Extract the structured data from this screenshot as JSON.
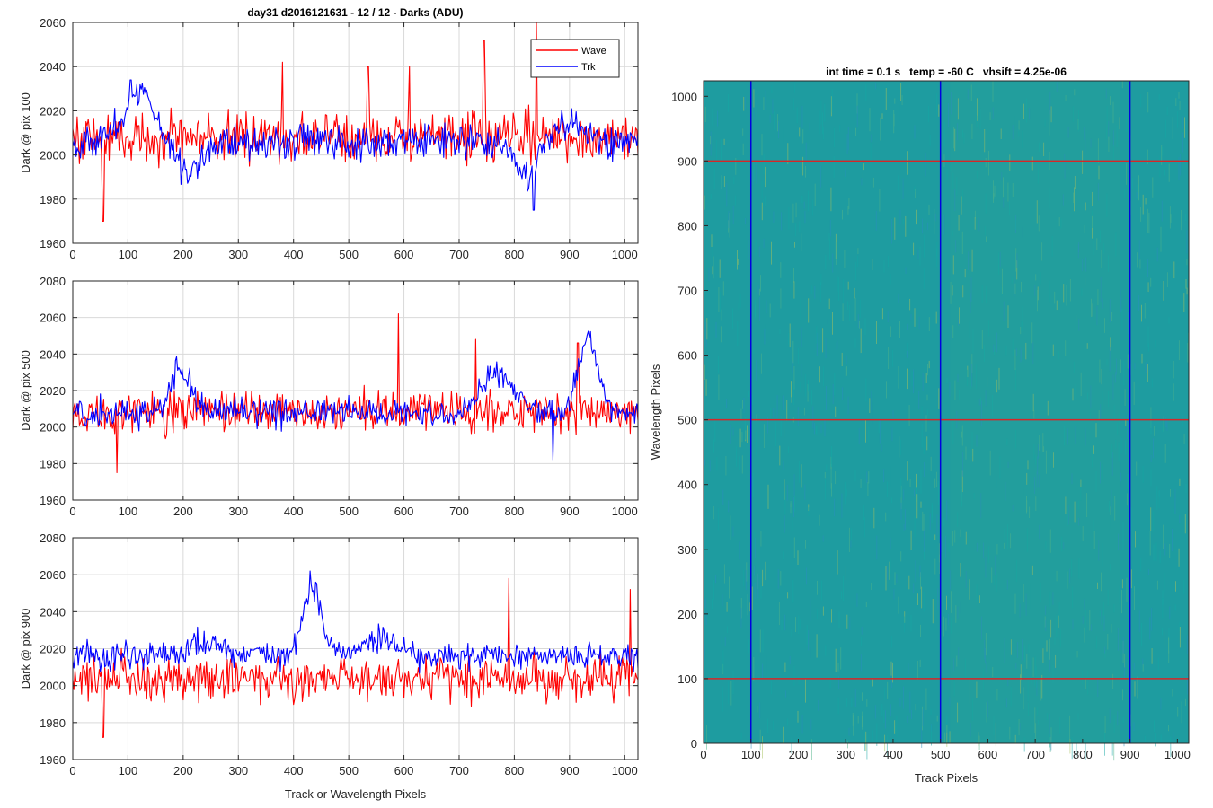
{
  "colors": {
    "wave": "#ff0000",
    "trk": "#0000ff",
    "grid": "#d9d9d9",
    "axes": "#262626",
    "image_base": "#1e9ca0",
    "marker_h": "#d62728",
    "marker_v": "#0000e0"
  },
  "chart_data": [
    {
      "type": "line",
      "title": "day31 d2016121631 - 12 / 12 - Darks (ADU)",
      "xlabel": "",
      "ylabel": "Dark @ pix 100",
      "xlim": [
        0,
        1024
      ],
      "ylim": [
        1960,
        2060
      ],
      "xticks": [
        "0",
        "100",
        "200",
        "300",
        "400",
        "500",
        "600",
        "700",
        "800",
        "900",
        "1000"
      ],
      "yticks": [
        "1960",
        "1980",
        "2000",
        "2020",
        "2040",
        "2060"
      ],
      "grid": true,
      "legend": {
        "position": "top-right",
        "entries": [
          "Wave",
          "Trk"
        ]
      },
      "series": [
        {
          "name": "Wave",
          "color": "#ff0000",
          "baseline": 2008,
          "noise": 9,
          "spikes": [
            [
              55,
              1970
            ],
            [
              380,
              2042
            ],
            [
              535,
              2040
            ],
            [
              610,
              2040
            ],
            [
              745,
              2052
            ],
            [
              840,
              2060
            ]
          ],
          "bumps": []
        },
        {
          "name": "Trk",
          "color": "#0000ff",
          "baseline": 2006,
          "noise": 6,
          "spikes": [
            [
              105,
              2034
            ],
            [
              835,
              1975
            ]
          ],
          "bumps": [
            [
              120,
              40,
              22
            ],
            [
              210,
              30,
              -14
            ],
            [
              820,
              25,
              -16
            ],
            [
              900,
              35,
              8
            ]
          ]
        }
      ]
    },
    {
      "type": "line",
      "title": "",
      "xlabel": "",
      "ylabel": "Dark @ pix 500",
      "xlim": [
        0,
        1024
      ],
      "ylim": [
        1960,
        2080
      ],
      "xticks": [
        "0",
        "100",
        "200",
        "300",
        "400",
        "500",
        "600",
        "700",
        "800",
        "900",
        "1000"
      ],
      "yticks": [
        "1960",
        "1980",
        "2000",
        "2020",
        "2040",
        "2060",
        "2080"
      ],
      "grid": true,
      "series": [
        {
          "name": "Wave",
          "color": "#ff0000",
          "baseline": 2008,
          "noise": 9,
          "spikes": [
            [
              80,
              1975
            ],
            [
              590,
              2062
            ],
            [
              730,
              2048
            ],
            [
              915,
              2046
            ]
          ],
          "bumps": []
        },
        {
          "name": "Trk",
          "color": "#0000ff",
          "baseline": 2008,
          "noise": 6,
          "spikes": [
            [
              870,
              1982
            ]
          ],
          "bumps": [
            [
              195,
              25,
              24
            ],
            [
              770,
              40,
              22
            ],
            [
              935,
              25,
              40
            ]
          ]
        }
      ]
    },
    {
      "type": "line",
      "title": "",
      "xlabel": "Track or Wavelength Pixels",
      "ylabel": "Dark @ pix 900",
      "xlim": [
        0,
        1024
      ],
      "ylim": [
        1960,
        2080
      ],
      "xticks": [
        "0",
        "100",
        "200",
        "300",
        "400",
        "500",
        "600",
        "700",
        "800",
        "900",
        "1000"
      ],
      "yticks": [
        "1960",
        "1980",
        "2000",
        "2020",
        "2040",
        "2060",
        "2080"
      ],
      "grid": true,
      "series": [
        {
          "name": "Wave",
          "color": "#ff0000",
          "baseline": 2004,
          "noise": 9,
          "spikes": [
            [
              55,
              1972
            ],
            [
              790,
              2058
            ],
            [
              1010,
              2052
            ]
          ],
          "bumps": []
        },
        {
          "name": "Trk",
          "color": "#0000ff",
          "baseline": 2016,
          "noise": 6,
          "spikes": [
            [
              430,
              2062
            ]
          ],
          "bumps": [
            [
              240,
              40,
              8
            ],
            [
              435,
              25,
              36
            ],
            [
              555,
              40,
              10
            ]
          ]
        }
      ]
    },
    {
      "type": "heatmap",
      "title": "int time = 0.1 s   temp = -60 C   vhsift = 4.25e-06",
      "xlabel": "Track Pixels",
      "ylabel": "Wavelength Pixels",
      "xlim": [
        0,
        1024
      ],
      "ylim": [
        0,
        1024
      ],
      "xticks": [
        "0",
        "100",
        "200",
        "300",
        "400",
        "500",
        "600",
        "700",
        "800",
        "900",
        "1000"
      ],
      "yticks": [
        "0",
        "100",
        "200",
        "300",
        "400",
        "500",
        "600",
        "700",
        "800",
        "900",
        "1000"
      ],
      "horizontal_markers": [
        100,
        500,
        900
      ],
      "vertical_markers": [
        100,
        500,
        900
      ],
      "colormap": "parula"
    }
  ]
}
